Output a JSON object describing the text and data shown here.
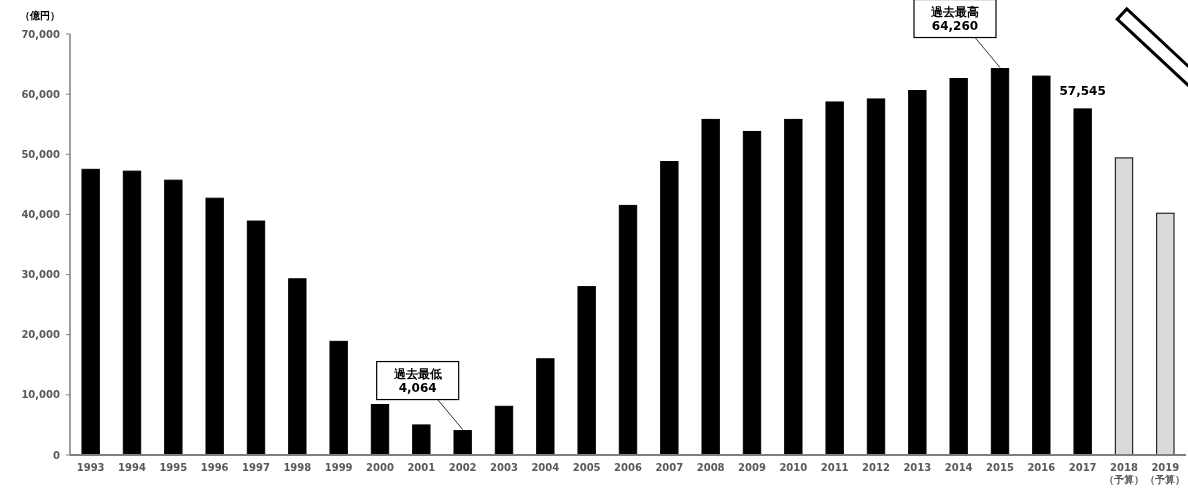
{
  "chart_data": {
    "type": "bar",
    "ylabel": "（億円）",
    "categories": [
      "1993",
      "1994",
      "1995",
      "1996",
      "1997",
      "1998",
      "1999",
      "2000",
      "2001",
      "2002",
      "2003",
      "2004",
      "2005",
      "2006",
      "2007",
      "2008",
      "2009",
      "2010",
      "2011",
      "2012",
      "2013",
      "2014",
      "2015",
      "2016",
      "2017",
      "2018\n（予算）",
      "2019\n（予算）"
    ],
    "values": [
      47500,
      47200,
      45700,
      42700,
      38900,
      29300,
      18900,
      8400,
      5000,
      4064,
      8100,
      16000,
      28000,
      41500,
      48800,
      55800,
      53800,
      55800,
      58700,
      59200,
      60600,
      62600,
      64260,
      63000,
      57545,
      49400,
      40200
    ],
    "colors": [
      "#000000",
      "#000000",
      "#000000",
      "#000000",
      "#000000",
      "#000000",
      "#000000",
      "#000000",
      "#000000",
      "#000000",
      "#000000",
      "#000000",
      "#000000",
      "#000000",
      "#000000",
      "#000000",
      "#000000",
      "#000000",
      "#000000",
      "#000000",
      "#000000",
      "#000000",
      "#000000",
      "#000000",
      "#000000",
      "#d9d9d9",
      "#d9d9d9"
    ],
    "value_labels": [
      null,
      null,
      null,
      null,
      null,
      null,
      null,
      null,
      null,
      null,
      null,
      null,
      null,
      null,
      null,
      null,
      null,
      null,
      null,
      null,
      null,
      null,
      null,
      null,
      "57,545",
      null,
      null
    ],
    "ylim": [
      0,
      70000
    ],
    "yticks": [
      {
        "value": 0,
        "label": "0"
      },
      {
        "value": 10000,
        "label": "10,000"
      },
      {
        "value": 20000,
        "label": "20,000"
      },
      {
        "value": 30000,
        "label": "30,000"
      },
      {
        "value": 40000,
        "label": "40,000"
      },
      {
        "value": 50000,
        "label": "50,000"
      },
      {
        "value": 60000,
        "label": "60,000"
      },
      {
        "value": 70000,
        "label": "70,000"
      }
    ],
    "annotations": [
      {
        "text": "過去最低\n4,064",
        "x": "2002",
        "y": 4064
      },
      {
        "text": "過去最高\n64,260",
        "x": "2015",
        "y": 64260
      }
    ],
    "grid": false
  }
}
